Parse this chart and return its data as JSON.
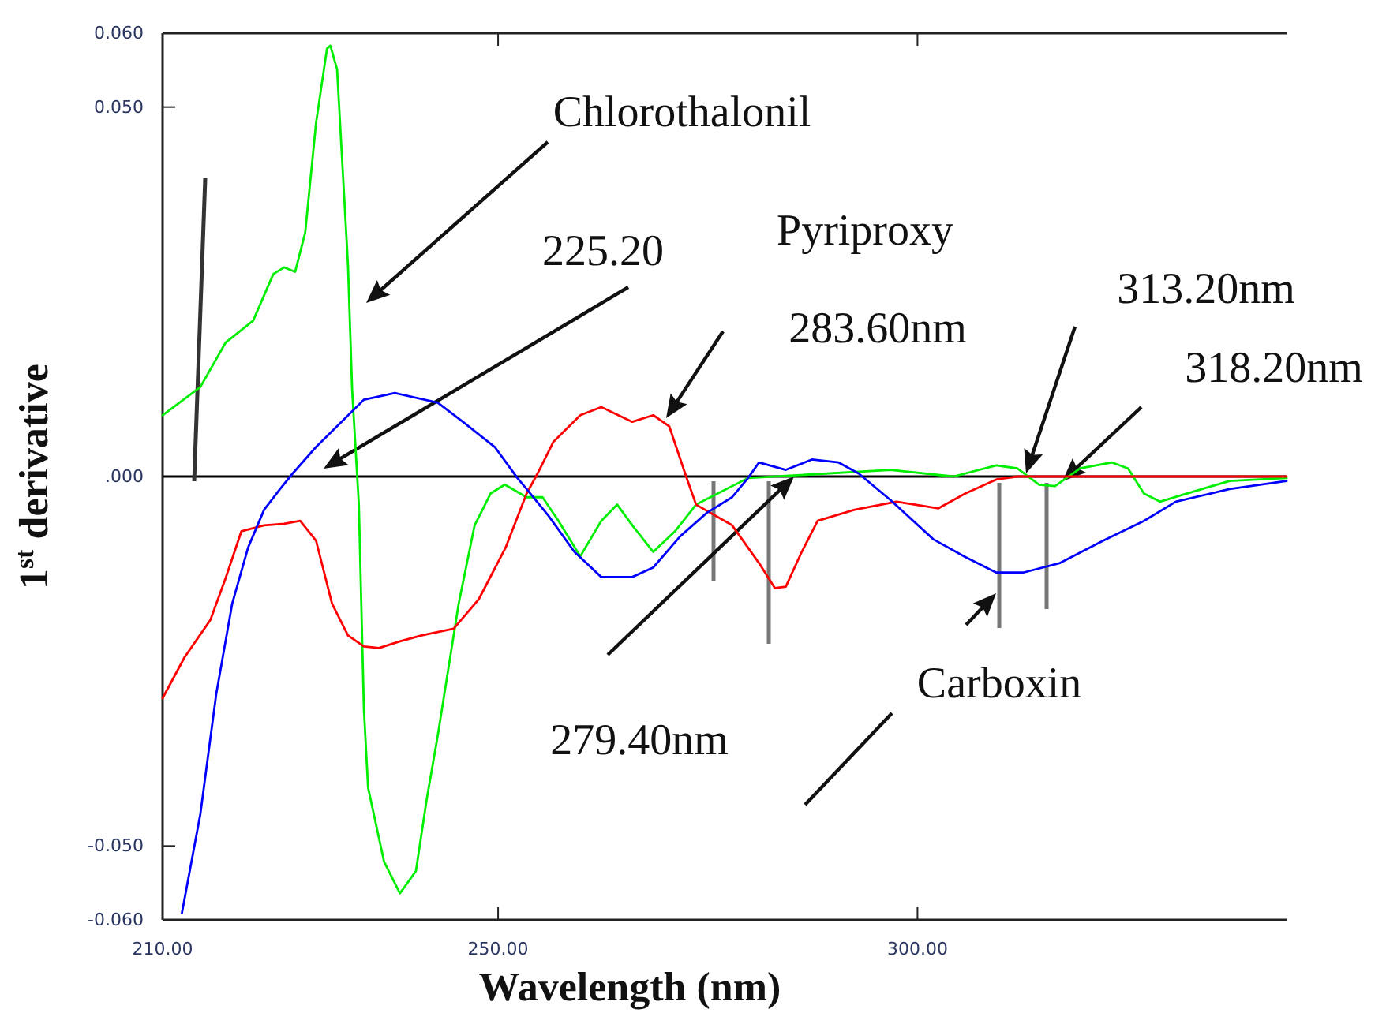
{
  "chart_data": {
    "type": "line",
    "xlabel": "Wavelength (nm)",
    "ylabel": "1$^{st}$ derivative",
    "xlim": [
      210,
      344
    ],
    "ylim": [
      -0.06,
      0.06
    ],
    "xticks": [
      {
        "value": 210,
        "label": "210.00"
      },
      {
        "value": 250,
        "label": "250.00"
      },
      {
        "value": 300,
        "label": "300.00"
      }
    ],
    "yticks": [
      {
        "value": -0.06,
        "label": "-0.060"
      },
      {
        "value": -0.05,
        "label": "-0.050"
      },
      {
        "value": 0,
        "label": ".000"
      },
      {
        "value": 0.05,
        "label": "0.050"
      },
      {
        "value": 0.06,
        "label": "0.060"
      }
    ],
    "grid": false,
    "marker": "none",
    "line_style": "solid",
    "ref_lines": [
      {
        "axis": "y",
        "value": 0,
        "color": "#000000"
      }
    ],
    "series": [
      {
        "color": "#00ee00",
        "x": [
          210,
          214.5,
          217.5,
          220.8,
          223.2,
          224.5,
          225.8,
          227,
          228.3,
          229.6,
          230,
          230.8,
          232.1,
          232.6,
          233.4,
          234,
          234.5,
          236.4,
          238.3,
          240.2,
          241.5,
          242.8,
          245.3,
          247.2,
          249.1,
          250.8,
          253.4,
          255.3,
          257.2,
          259.8,
          262.3,
          264.2,
          266,
          268.5,
          271.1,
          273.6,
          279.8,
          296.8,
          304.3,
          309.4,
          311.9,
          314.5,
          316.4,
          319.4,
          323.2,
          325.1,
          327,
          328.9,
          332.1,
          337.2,
          344
        ],
        "values": [
          0.0083,
          0.0121,
          0.0181,
          0.0211,
          0.0274,
          0.0283,
          0.0277,
          0.033,
          0.0479,
          0.0579,
          0.0583,
          0.0551,
          0.0287,
          0.0117,
          -0.0038,
          -0.0315,
          -0.0421,
          -0.0521,
          -0.0564,
          -0.0534,
          -0.0436,
          -0.0351,
          -0.0172,
          -0.0066,
          -0.0023,
          -0.0011,
          -0.0028,
          -0.0028,
          -0.006,
          -0.0108,
          -0.006,
          -0.0038,
          -0.0066,
          -0.0102,
          -0.0074,
          -0.0038,
          -0.0002,
          0.0009,
          0,
          0.0015,
          0.0011,
          -0.0011,
          -0.0013,
          0.0011,
          0.0019,
          0.0011,
          -0.0023,
          -0.0034,
          -0.0023,
          -0.0006,
          -0.0002
        ]
      },
      {
        "color": "#ff0000",
        "x": [
          210,
          212.6,
          215.7,
          217.5,
          219.4,
          222.1,
          224.5,
          226.4,
          228.3,
          230.2,
          232.1,
          234,
          235.8,
          238.3,
          240.9,
          244.7,
          247.7,
          250.9,
          253.4,
          254.7,
          256.6,
          259.8,
          262.3,
          266,
          268.5,
          270.4,
          272.3,
          273.6,
          277.9,
          281.1,
          283,
          284.3,
          286.2,
          288.1,
          292.5,
          297.5,
          302.5,
          305.7,
          309.4,
          311.9,
          322.6,
          344
        ],
        "values": [
          -0.03,
          -0.0245,
          -0.0194,
          -0.0138,
          -0.0074,
          -0.0066,
          -0.0064,
          -0.006,
          -0.0087,
          -0.0172,
          -0.0215,
          -0.023,
          -0.0232,
          -0.0223,
          -0.0215,
          -0.0206,
          -0.0166,
          -0.0096,
          -0.0023,
          0.0004,
          0.0047,
          0.0083,
          0.0094,
          0.0074,
          0.0083,
          0.0068,
          0.0004,
          -0.0038,
          -0.0066,
          -0.0117,
          -0.0151,
          -0.0149,
          -0.0102,
          -0.006,
          -0.0045,
          -0.0034,
          -0.0043,
          -0.0023,
          -0.0004,
          0,
          0,
          0
        ]
      },
      {
        "color": "#0000ff",
        "x": [
          212.3,
          214.5,
          216.4,
          218.3,
          220.2,
          222.1,
          224,
          225.5,
          228.3,
          230.8,
          234,
          237.7,
          242.8,
          245.8,
          249.6,
          252.3,
          253.4,
          256,
          259.1,
          262.3,
          266,
          268.5,
          271.7,
          274.9,
          277.9,
          279.8,
          281.1,
          284.3,
          287.4,
          290.6,
          293,
          296.8,
          301.9,
          305.7,
          309.4,
          312.6,
          317,
          322.1,
          327,
          330.8,
          337.2,
          344
        ],
        "values": [
          -0.0591,
          -0.0457,
          -0.0294,
          -0.0172,
          -0.0096,
          -0.0045,
          -0.0017,
          0.0004,
          0.004,
          0.0068,
          0.0104,
          0.0113,
          0.01,
          0.0074,
          0.004,
          -0.0002,
          -0.0017,
          -0.0053,
          -0.0102,
          -0.0136,
          -0.0136,
          -0.0123,
          -0.0081,
          -0.0049,
          -0.0028,
          -0.0002,
          0.0019,
          0.0009,
          0.0023,
          0.0019,
          0.0004,
          -0.0032,
          -0.0085,
          -0.0109,
          -0.013,
          -0.013,
          -0.0117,
          -0.0087,
          -0.006,
          -0.0034,
          -0.0017,
          -0.0006
        ]
      }
    ],
    "annotations": [
      "Chlorothalonil",
      "225.20",
      "Pyriproxy",
      "283.60nm",
      "313.20nm",
      "318.20nm",
      "279.40nm",
      "Carboxin"
    ]
  }
}
